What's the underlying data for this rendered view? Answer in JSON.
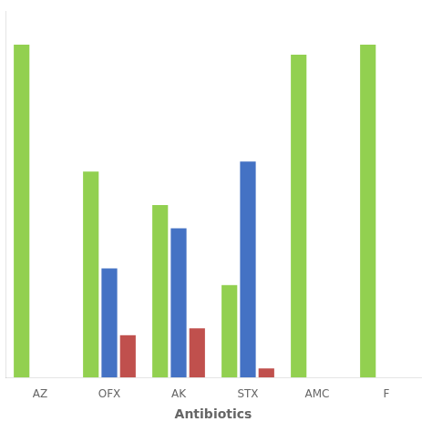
{
  "chart_data": {
    "type": "bar",
    "xlabel": "Antibiotics",
    "categories": [
      "AZ",
      "OFX",
      "AK",
      "STX",
      "AMC",
      "F"
    ],
    "series": [
      {
        "color": "#92D050",
        "values": [
          100,
          62,
          52,
          28,
          97,
          100
        ]
      },
      {
        "color": "#4472C4",
        "values": [
          0,
          33,
          45,
          65,
          0,
          0
        ]
      },
      {
        "color": "#C0504D",
        "values": [
          0,
          13,
          15,
          3,
          0,
          0
        ]
      }
    ],
    "ylim": [
      0,
      110
    ],
    "grid": false,
    "tick_labels": "x"
  }
}
